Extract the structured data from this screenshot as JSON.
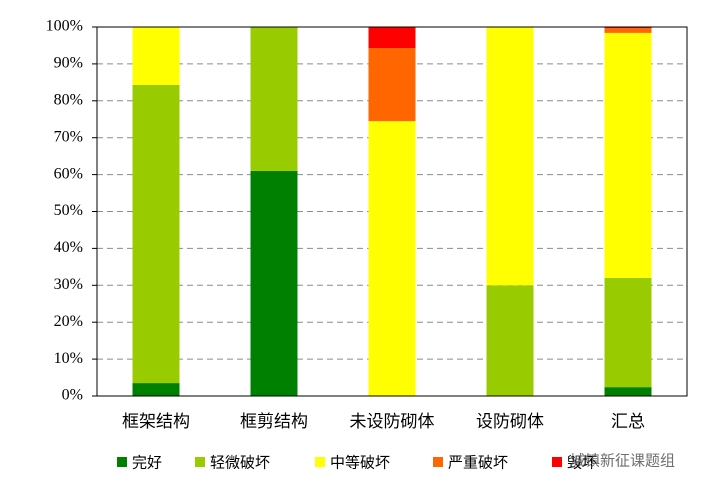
{
  "chart_data": {
    "type": "stacked_bar",
    "categories": [
      "框架结构",
      "框剪结构",
      "未设防砌体",
      "设防砌体",
      "汇总"
    ],
    "series": [
      {
        "name": "完好",
        "color": "#008000",
        "values": [
          3.5,
          61,
          0,
          0,
          2.4
        ]
      },
      {
        "name": "轻微破坏",
        "color": "#99cc00",
        "values": [
          80.8,
          39,
          0,
          30,
          29.6
        ]
      },
      {
        "name": "中等破坏",
        "color": "#ffff00",
        "values": [
          15.7,
          0,
          74.5,
          70,
          66.4
        ]
      },
      {
        "name": "严重破坏",
        "color": "#ff6600",
        "values": [
          0,
          0,
          19.8,
          0,
          1.3
        ]
      },
      {
        "name": "毁坏",
        "color": "#ff0000",
        "values": [
          0,
          0,
          5.7,
          0,
          0.3
        ]
      }
    ],
    "ylim": [
      0,
      100
    ],
    "yticks": [
      {
        "value": 0,
        "label": "0%"
      },
      {
        "value": 10,
        "label": "10%"
      },
      {
        "value": 20,
        "label": "20%"
      },
      {
        "value": 30,
        "label": "30%"
      },
      {
        "value": 40,
        "label": "40%"
      },
      {
        "value": 50,
        "label": "50%"
      },
      {
        "value": 60,
        "label": "60%"
      },
      {
        "value": 70,
        "label": "70%"
      },
      {
        "value": 80,
        "label": "80%"
      },
      {
        "value": 90,
        "label": "90%"
      },
      {
        "value": 100,
        "label": "100%"
      }
    ],
    "grid": true,
    "legend": "bottom"
  },
  "watermark": "城镇新征课题组"
}
